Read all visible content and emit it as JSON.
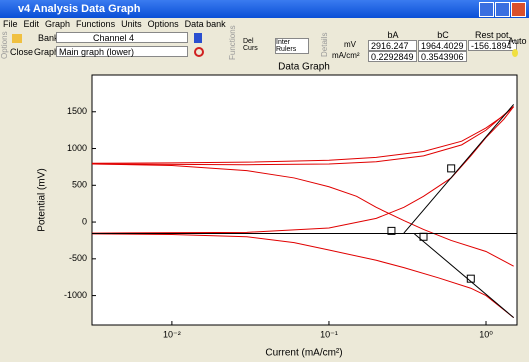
{
  "window": {
    "title": "v4 Analysis Data Graph"
  },
  "menu": [
    "File",
    "Edit",
    "Graph",
    "Functions",
    "Units",
    "Options",
    "Data bank"
  ],
  "toolbar": {
    "options_label": "Options",
    "close": "Close",
    "bank_label": "Bank",
    "graph_label": "Graph",
    "bank_value": "Channel 4",
    "graph_value": "Main graph (lower)",
    "functions_label": "Functions",
    "del_curs": "Del Curs",
    "inter_rulers": "Inter Rulers",
    "details_label": "Details",
    "auto": "Auto"
  },
  "results": {
    "columns": [
      "bA",
      "bC",
      "Rest pot."
    ],
    "rows": [
      {
        "unit": "mV",
        "values": [
          "2916.247",
          "1964.4029",
          "-156.1894"
        ]
      },
      {
        "unit": "mA/cm²",
        "values": [
          "0.2292849",
          "0.3543906"
        ]
      }
    ]
  },
  "chart_data": {
    "type": "line",
    "title": "Data Graph",
    "x_label": "Current (mA/cm²)",
    "y_label": "Potential (mV)",
    "log_x": true,
    "xlim": [
      0.0031,
      1.575
    ],
    "ylim": [
      -1400,
      2000
    ],
    "xticks": [
      {
        "value": 0.01,
        "label": "10⁻²"
      },
      {
        "value": 0.1,
        "label": "10⁻¹"
      },
      {
        "value": 1,
        "label": "10⁰"
      }
    ],
    "yticks": [
      -1000,
      -500,
      0,
      500,
      1000,
      1500
    ],
    "series": [
      {
        "color": "#e00000",
        "x": [
          0.0031,
          0.01,
          0.03,
          0.1,
          0.2,
          0.4,
          0.7,
          1.0,
          1.3,
          1.5
        ],
        "values": [
          800,
          805,
          815,
          840,
          880,
          960,
          1100,
          1280,
          1450,
          1570
        ]
      },
      {
        "color": "#e00000",
        "x": [
          0.0031,
          0.01,
          0.03,
          0.1,
          0.2,
          0.4,
          0.7,
          1.0,
          1.5
        ],
        "values": [
          790,
          785,
          780,
          790,
          820,
          900,
          1050,
          1250,
          1570
        ]
      },
      {
        "color": "#e00000",
        "x": [
          0.0031,
          0.01,
          0.03,
          0.06,
          0.1,
          0.15,
          0.2,
          0.3,
          0.4,
          0.6,
          1.0,
          1.5
        ],
        "values": [
          790,
          770,
          700,
          600,
          480,
          350,
          200,
          20,
          -100,
          -250,
          -400,
          -600
        ]
      },
      {
        "color": "#e00000",
        "x": [
          0.0031,
          0.01,
          0.03,
          0.06,
          0.1,
          0.2,
          0.3,
          0.5,
          0.8,
          1.0,
          1.5
        ],
        "values": [
          -160,
          -170,
          -200,
          -280,
          -380,
          -520,
          -620,
          -760,
          -900,
          -1000,
          -1300
        ]
      },
      {
        "color": "#e00000",
        "x": [
          0.0031,
          0.03,
          0.1,
          0.2,
          0.3,
          0.4,
          0.6,
          0.8,
          1.0,
          1.3,
          1.5
        ],
        "values": [
          -150,
          -140,
          -80,
          50,
          200,
          350,
          600,
          900,
          1150,
          1400,
          1570
        ]
      },
      {
        "color": "#000000",
        "x": [
          0.0031,
          1.575
        ],
        "values": [
          -156,
          -156
        ]
      },
      {
        "color": "#000000",
        "x": [
          0.3,
          1.5
        ],
        "values": [
          -150,
          1600
        ]
      },
      {
        "color": "#000000",
        "x": [
          0.35,
          1.5
        ],
        "values": [
          -160,
          -1300
        ]
      }
    ],
    "markers": {
      "color": "#000000",
      "x": [
        0.25,
        0.6,
        0.4,
        0.8
      ],
      "values": [
        -120,
        730,
        -200,
        -770
      ]
    }
  }
}
